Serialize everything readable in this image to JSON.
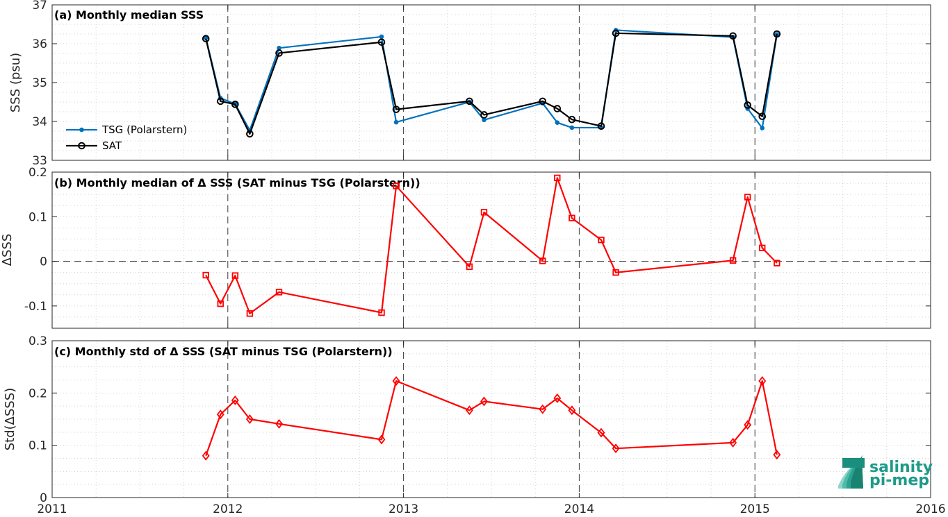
{
  "x_axis": {
    "range": [
      2011,
      2016
    ],
    "tick_labels": [
      "2011",
      "2012",
      "2013",
      "2014",
      "2015",
      "2016"
    ]
  },
  "colors": {
    "tsg": "#0072bd",
    "sat": "#000000",
    "delta": "#ff0000"
  },
  "logo": {
    "line1": "salinity",
    "line2": "pi-mep",
    "color": "#1e9a8a"
  },
  "chart_data": [
    {
      "type": "line",
      "title": "(a) Monthly median SSS",
      "ylabel": "SSS (psu)",
      "ylim": [
        33,
        37
      ],
      "y_tick_labels": [
        "33",
        "34",
        "35",
        "36",
        "37"
      ],
      "grid": "dotted minor",
      "legend": {
        "placement": "bottom-left",
        "entries": [
          "TSG (Polarstern)",
          "SAT"
        ]
      },
      "series": [
        {
          "name": "TSG (Polarstern)",
          "marker": "dot",
          "x": [
            "2011-11",
            "2011-12",
            "2012-01",
            "2012-02",
            "2012-04",
            "2012-11",
            "2012-12",
            "2013-05",
            "2013-06",
            "2013-10",
            "2013-11",
            "2013-12",
            "2014-02",
            "2014-03",
            "2014-11",
            "2014-12",
            "2015-01",
            "2015-02"
          ],
          "values": [
            36.15,
            34.6,
            34.45,
            33.77,
            35.89,
            36.18,
            33.98,
            34.5,
            34.04,
            34.47,
            33.97,
            33.84,
            33.84,
            36.35,
            36.17,
            34.33,
            33.83,
            36.24
          ]
        },
        {
          "name": "SAT",
          "marker": "circle",
          "x": [
            "2011-11",
            "2011-12",
            "2012-01",
            "2012-02",
            "2012-04",
            "2012-11",
            "2012-12",
            "2013-05",
            "2013-06",
            "2013-10",
            "2013-11",
            "2013-12",
            "2014-02",
            "2014-03",
            "2014-11",
            "2014-12",
            "2015-01",
            "2015-02"
          ],
          "values": [
            36.13,
            34.52,
            34.44,
            33.68,
            35.76,
            36.04,
            34.31,
            34.52,
            34.17,
            34.52,
            34.33,
            34.05,
            33.88,
            36.27,
            36.2,
            34.42,
            34.13,
            36.25
          ]
        }
      ]
    },
    {
      "type": "line",
      "title": "(b) Monthly median of Δ SSS (SAT minus TSG (Polarstern))",
      "ylabel": "ΔSSS",
      "ylim": [
        -0.15,
        0.2
      ],
      "y_tick_labels": [
        "-0.1",
        "0",
        "0.1",
        "0.2"
      ],
      "y_tick_values": [
        -0.1,
        0,
        0.1,
        0.2
      ],
      "reference_line_y": 0,
      "series": [
        {
          "marker": "square",
          "x": [
            "2011-11",
            "2011-12",
            "2012-01",
            "2012-02",
            "2012-04",
            "2012-11",
            "2012-12",
            "2013-05",
            "2013-06",
            "2013-10",
            "2013-11",
            "2013-12",
            "2014-02",
            "2014-03",
            "2014-11",
            "2014-12",
            "2015-01",
            "2015-02"
          ],
          "values": [
            -0.031,
            -0.095,
            -0.032,
            -0.117,
            -0.069,
            -0.115,
            0.169,
            -0.012,
            0.11,
            0.001,
            0.187,
            0.097,
            0.048,
            -0.025,
            0.002,
            0.144,
            0.03,
            -0.004
          ]
        }
      ]
    },
    {
      "type": "line",
      "title": "(c) Monthly std of Δ SSS (SAT minus TSG (Polarstern))",
      "ylabel": "Std(ΔSSS)",
      "ylim": [
        0,
        0.3
      ],
      "y_tick_labels": [
        "0",
        "0.1",
        "0.2",
        "0.3"
      ],
      "y_tick_values": [
        0,
        0.1,
        0.2,
        0.3
      ],
      "series": [
        {
          "marker": "diamond",
          "x": [
            "2011-11",
            "2011-12",
            "2012-01",
            "2012-02",
            "2012-04",
            "2012-11",
            "2012-12",
            "2013-05",
            "2013-06",
            "2013-10",
            "2013-11",
            "2013-12",
            "2014-02",
            "2014-03",
            "2014-11",
            "2014-12",
            "2015-01",
            "2015-02"
          ],
          "values": [
            0.08,
            0.159,
            0.186,
            0.15,
            0.141,
            0.111,
            0.223,
            0.167,
            0.184,
            0.169,
            0.19,
            0.167,
            0.124,
            0.094,
            0.105,
            0.139,
            0.223,
            0.082
          ]
        }
      ]
    }
  ]
}
